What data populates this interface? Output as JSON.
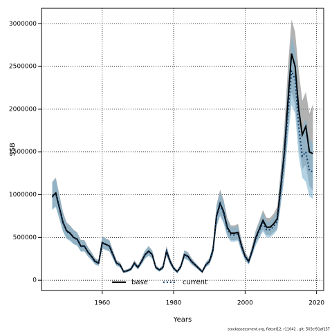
{
  "chart_data": {
    "type": "line",
    "x_label": "Years",
    "y_label": "SSB",
    "footer": "stockassessment.org, flatsel12, r11042 , git: 503cf91af157",
    "x": [
      1946,
      1947,
      1948,
      1949,
      1950,
      1951,
      1952,
      1953,
      1954,
      1955,
      1956,
      1957,
      1958,
      1959,
      1960,
      1961,
      1962,
      1963,
      1964,
      1965,
      1966,
      1967,
      1968,
      1969,
      1970,
      1971,
      1972,
      1973,
      1974,
      1975,
      1976,
      1977,
      1978,
      1979,
      1980,
      1981,
      1982,
      1983,
      1984,
      1985,
      1986,
      1987,
      1988,
      1989,
      1990,
      1991,
      1992,
      1993,
      1994,
      1995,
      1996,
      1997,
      1998,
      1999,
      2000,
      2001,
      2002,
      2003,
      2004,
      2005,
      2006,
      2007,
      2008,
      2009,
      2010,
      2011,
      2012,
      2013,
      2014,
      2015,
      2016,
      2017,
      2018,
      2019
    ],
    "series": [
      {
        "name": "base",
        "color": "#000000",
        "band_color": "#7f7f7f",
        "dash": false,
        "values": [
          980000,
          1020000,
          850000,
          680000,
          580000,
          550000,
          500000,
          480000,
          400000,
          400000,
          330000,
          280000,
          220000,
          200000,
          440000,
          420000,
          400000,
          300000,
          200000,
          180000,
          100000,
          110000,
          130000,
          200000,
          150000,
          220000,
          300000,
          340000,
          300000,
          150000,
          120000,
          150000,
          340000,
          220000,
          140000,
          100000,
          160000,
          300000,
          280000,
          220000,
          180000,
          140000,
          100000,
          180000,
          220000,
          350000,
          750000,
          900000,
          800000,
          620000,
          550000,
          550000,
          560000,
          400000,
          280000,
          220000,
          350000,
          500000,
          600000,
          700000,
          620000,
          620000,
          660000,
          720000,
          1100000,
          1500000,
          2100000,
          2650000,
          2500000,
          2000000,
          1700000,
          1800000,
          1500000,
          1480000
        ],
        "lower": [
          833000,
          867000,
          723000,
          578000,
          493000,
          468000,
          425000,
          408000,
          340000,
          340000,
          281000,
          238000,
          187000,
          170000,
          374000,
          357000,
          340000,
          255000,
          170000,
          153000,
          85000,
          94000,
          111000,
          170000,
          128000,
          187000,
          255000,
          289000,
          255000,
          128000,
          102000,
          128000,
          289000,
          187000,
          119000,
          85000,
          136000,
          255000,
          238000,
          187000,
          153000,
          119000,
          85000,
          153000,
          187000,
          298000,
          638000,
          765000,
          680000,
          527000,
          468000,
          468000,
          476000,
          340000,
          238000,
          187000,
          298000,
          425000,
          510000,
          595000,
          527000,
          527000,
          561000,
          600000,
          900000,
          1250000,
          1750000,
          2200000,
          2050000,
          1600000,
          1300000,
          1350000,
          1100000,
          1050000
        ],
        "upper": [
          1150000,
          1200000,
          1000000,
          800000,
          680000,
          640000,
          590000,
          560000,
          470000,
          470000,
          390000,
          330000,
          260000,
          235000,
          515000,
          490000,
          470000,
          350000,
          235000,
          210000,
          120000,
          130000,
          150000,
          235000,
          175000,
          260000,
          350000,
          400000,
          350000,
          175000,
          140000,
          175000,
          400000,
          260000,
          165000,
          120000,
          190000,
          350000,
          330000,
          260000,
          210000,
          165000,
          120000,
          210000,
          260000,
          410000,
          880000,
          1060000,
          940000,
          730000,
          640000,
          640000,
          660000,
          470000,
          330000,
          260000,
          410000,
          590000,
          700000,
          820000,
          730000,
          730000,
          780000,
          860000,
          1300000,
          1800000,
          2500000,
          3050000,
          2900000,
          2450000,
          2100000,
          2200000,
          1950000,
          2060000
        ]
      },
      {
        "name": "current",
        "color": "#123c69",
        "band_color": "#7fb4d2",
        "dash": true,
        "values": [
          970000,
          1010000,
          840000,
          670000,
          570000,
          540000,
          495000,
          475000,
          395000,
          395000,
          325000,
          275000,
          215000,
          195000,
          435000,
          415000,
          395000,
          295000,
          195000,
          175000,
          98000,
          108000,
          128000,
          195000,
          148000,
          215000,
          295000,
          335000,
          295000,
          148000,
          118000,
          148000,
          335000,
          215000,
          138000,
          98000,
          158000,
          295000,
          275000,
          215000,
          178000,
          138000,
          98000,
          178000,
          215000,
          345000,
          740000,
          880000,
          780000,
          600000,
          530000,
          530000,
          540000,
          385000,
          270000,
          215000,
          340000,
          480000,
          580000,
          670000,
          590000,
          590000,
          630000,
          690000,
          1050000,
          1450000,
          1950000,
          2450000,
          2350000,
          1800000,
          1450000,
          1500000,
          1280000,
          1270000
        ],
        "lower": [
          820000,
          855000,
          712000,
          568000,
          484000,
          458000,
          420000,
          403000,
          335000,
          335000,
          276000,
          233000,
          182000,
          165000,
          369000,
          352000,
          335000,
          250000,
          165000,
          148000,
          83000,
          92000,
          108000,
          165000,
          125000,
          182000,
          250000,
          284000,
          250000,
          125000,
          100000,
          125000,
          284000,
          182000,
          117000,
          83000,
          134000,
          250000,
          233000,
          182000,
          151000,
          117000,
          83000,
          151000,
          182000,
          293000,
          628000,
          748000,
          662000,
          510000,
          450000,
          450000,
          459000,
          327000,
          229000,
          182000,
          289000,
          408000,
          493000,
          570000,
          501000,
          501000,
          535000,
          586000,
          880000,
          1200000,
          1650000,
          2050000,
          1950000,
          1450000,
          1200000,
          1150000,
          980000,
          950000
        ],
        "upper": [
          1140000,
          1190000,
          990000,
          790000,
          670000,
          635000,
          585000,
          555000,
          465000,
          465000,
          385000,
          325000,
          255000,
          230000,
          510000,
          485000,
          465000,
          345000,
          230000,
          205000,
          115000,
          127000,
          150000,
          230000,
          173000,
          253000,
          345000,
          395000,
          345000,
          173000,
          138000,
          173000,
          395000,
          253000,
          162000,
          115000,
          185000,
          345000,
          323000,
          253000,
          210000,
          162000,
          115000,
          210000,
          253000,
          405000,
          870000,
          1030000,
          915000,
          705000,
          620000,
          620000,
          630000,
          450000,
          315000,
          253000,
          400000,
          565000,
          680000,
          790000,
          690000,
          690000,
          740000,
          810000,
          1250000,
          1700000,
          2300000,
          2850000,
          2700000,
          2150000,
          1750000,
          1900000,
          1650000,
          1600000
        ]
      }
    ],
    "xlim": [
      1943,
      2022
    ],
    "xticks": [
      1960,
      1980,
      2000,
      2020
    ],
    "ylim": [
      -120000,
      3180000
    ],
    "yticks": [
      0,
      500000,
      1000000,
      1500000,
      2000000,
      2500000,
      3000000
    ],
    "grid": true,
    "legend": "bottom"
  }
}
